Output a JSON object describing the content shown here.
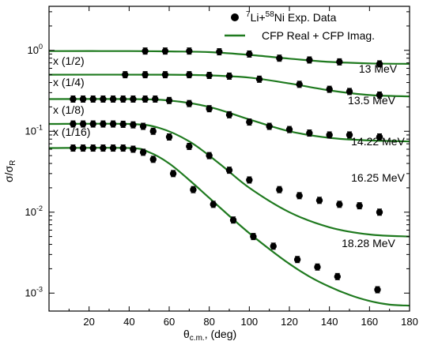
{
  "chart_data": {
    "type": "scatter",
    "xlabel": "θ",
    "xlabel_sub": "c.m.",
    "xlabel_unit": ", (deg)",
    "ylabel": "σ/σ",
    "ylabel_sub": "R",
    "xlim": [
      0,
      180
    ],
    "ylim": [
      0.0006,
      3.5
    ],
    "yscale": "log",
    "x_ticks": [
      20,
      40,
      60,
      80,
      100,
      120,
      140,
      160,
      180
    ],
    "y_ticks": [
      {
        "value": 0.001,
        "base": "10",
        "exp": "-3"
      },
      {
        "value": 0.01,
        "base": "10",
        "exp": "-2"
      },
      {
        "value": 0.1,
        "base": "10",
        "exp": "-1"
      },
      {
        "value": 1,
        "base": "10",
        "exp": "0"
      }
    ],
    "legend": {
      "placement": "top-right",
      "entries": [
        {
          "kind": "marker",
          "sup1": "7",
          "text1": "Li+",
          "sup2": "58",
          "text2": "Ni Exp. Data"
        },
        {
          "kind": "line",
          "text": "CFP Real + CFP Imag.",
          "color": "#1f7a1f"
        }
      ]
    },
    "colors": {
      "fit": "#1f7a1f",
      "data": "#000000"
    },
    "series": [
      {
        "name": "13 MeV",
        "scale_label": "",
        "points": [
          [
            48,
            0.98
          ],
          [
            58,
            0.98
          ],
          [
            70,
            0.98
          ],
          [
            85,
            0.96
          ],
          [
            100,
            0.9
          ],
          [
            115,
            0.8
          ],
          [
            130,
            0.76
          ],
          [
            145,
            0.72
          ],
          [
            165,
            0.68
          ]
        ],
        "fit": [
          [
            0,
            0.98
          ],
          [
            40,
            0.98
          ],
          [
            60,
            0.97
          ],
          [
            80,
            0.95
          ],
          [
            100,
            0.88
          ],
          [
            120,
            0.79
          ],
          [
            140,
            0.72
          ],
          [
            160,
            0.69
          ],
          [
            180,
            0.68
          ]
        ]
      },
      {
        "name": "13.5 MeV",
        "scale_label": "x (1/2)",
        "points": [
          [
            38,
            0.5
          ],
          [
            48,
            0.5
          ],
          [
            58,
            0.5
          ],
          [
            70,
            0.5
          ],
          [
            80,
            0.49
          ],
          [
            90,
            0.48
          ],
          [
            105,
            0.44
          ],
          [
            125,
            0.38
          ],
          [
            140,
            0.33
          ],
          [
            150,
            0.31
          ],
          [
            165,
            0.28
          ]
        ],
        "fit": [
          [
            0,
            0.5
          ],
          [
            60,
            0.5
          ],
          [
            80,
            0.49
          ],
          [
            100,
            0.46
          ],
          [
            120,
            0.39
          ],
          [
            140,
            0.32
          ],
          [
            160,
            0.28
          ],
          [
            180,
            0.27
          ]
        ]
      },
      {
        "name": "14.22 MeV",
        "scale_label": "x (1/4)",
        "points": [
          [
            12,
            0.25
          ],
          [
            17,
            0.25
          ],
          [
            22,
            0.25
          ],
          [
            27,
            0.25
          ],
          [
            32,
            0.25
          ],
          [
            37,
            0.25
          ],
          [
            42,
            0.25
          ],
          [
            48,
            0.25
          ],
          [
            53,
            0.25
          ],
          [
            60,
            0.24
          ],
          [
            70,
            0.22
          ],
          [
            80,
            0.19
          ],
          [
            90,
            0.16
          ],
          [
            100,
            0.13
          ],
          [
            110,
            0.115
          ],
          [
            120,
            0.105
          ],
          [
            130,
            0.095
          ],
          [
            140,
            0.09
          ],
          [
            150,
            0.09
          ],
          [
            165,
            0.085
          ]
        ],
        "fit": [
          [
            0,
            0.25
          ],
          [
            40,
            0.25
          ],
          [
            60,
            0.24
          ],
          [
            80,
            0.2
          ],
          [
            100,
            0.14
          ],
          [
            120,
            0.1
          ],
          [
            140,
            0.083
          ],
          [
            160,
            0.077
          ],
          [
            180,
            0.075
          ]
        ]
      },
      {
        "name": "16.25 MeV",
        "scale_label": "x (1/8)",
        "points": [
          [
            12,
            0.123
          ],
          [
            17,
            0.123
          ],
          [
            22,
            0.123
          ],
          [
            27,
            0.123
          ],
          [
            32,
            0.123
          ],
          [
            37,
            0.122
          ],
          [
            42,
            0.12
          ],
          [
            47,
            0.115
          ],
          [
            52,
            0.1
          ],
          [
            60,
            0.085
          ],
          [
            70,
            0.065
          ],
          [
            80,
            0.05
          ],
          [
            90,
            0.033
          ],
          [
            100,
            0.025
          ],
          [
            115,
            0.019
          ],
          [
            125,
            0.016
          ],
          [
            135,
            0.014
          ],
          [
            145,
            0.0125
          ],
          [
            155,
            0.012
          ],
          [
            165,
            0.01
          ]
        ],
        "fit": [
          [
            0,
            0.123
          ],
          [
            40,
            0.123
          ],
          [
            55,
            0.11
          ],
          [
            70,
            0.075
          ],
          [
            85,
            0.04
          ],
          [
            100,
            0.02
          ],
          [
            120,
            0.01
          ],
          [
            140,
            0.0065
          ],
          [
            160,
            0.0053
          ],
          [
            180,
            0.005
          ]
        ]
      },
      {
        "name": "18.28 MeV",
        "scale_label": "x (1/16)",
        "points": [
          [
            12,
            0.062
          ],
          [
            17,
            0.062
          ],
          [
            22,
            0.062
          ],
          [
            27,
            0.062
          ],
          [
            32,
            0.062
          ],
          [
            37,
            0.062
          ],
          [
            42,
            0.06
          ],
          [
            47,
            0.055
          ],
          [
            52,
            0.045
          ],
          [
            62,
            0.03
          ],
          [
            72,
            0.019
          ],
          [
            82,
            0.0125
          ],
          [
            92,
            0.008
          ],
          [
            102,
            0.005
          ],
          [
            112,
            0.0038
          ],
          [
            124,
            0.0026
          ],
          [
            134,
            0.0021
          ],
          [
            144,
            0.0016
          ],
          [
            164,
            0.0011
          ]
        ],
        "fit": [
          [
            0,
            0.062
          ],
          [
            40,
            0.062
          ],
          [
            50,
            0.055
          ],
          [
            60,
            0.04
          ],
          [
            70,
            0.025
          ],
          [
            80,
            0.015
          ],
          [
            90,
            0.009
          ],
          [
            100,
            0.0055
          ],
          [
            110,
            0.0035
          ],
          [
            120,
            0.0023
          ],
          [
            130,
            0.0016
          ],
          [
            140,
            0.0012
          ],
          [
            150,
            0.00095
          ],
          [
            160,
            0.0008
          ],
          [
            170,
            0.00072
          ],
          [
            180,
            0.0007
          ]
        ]
      }
    ]
  }
}
